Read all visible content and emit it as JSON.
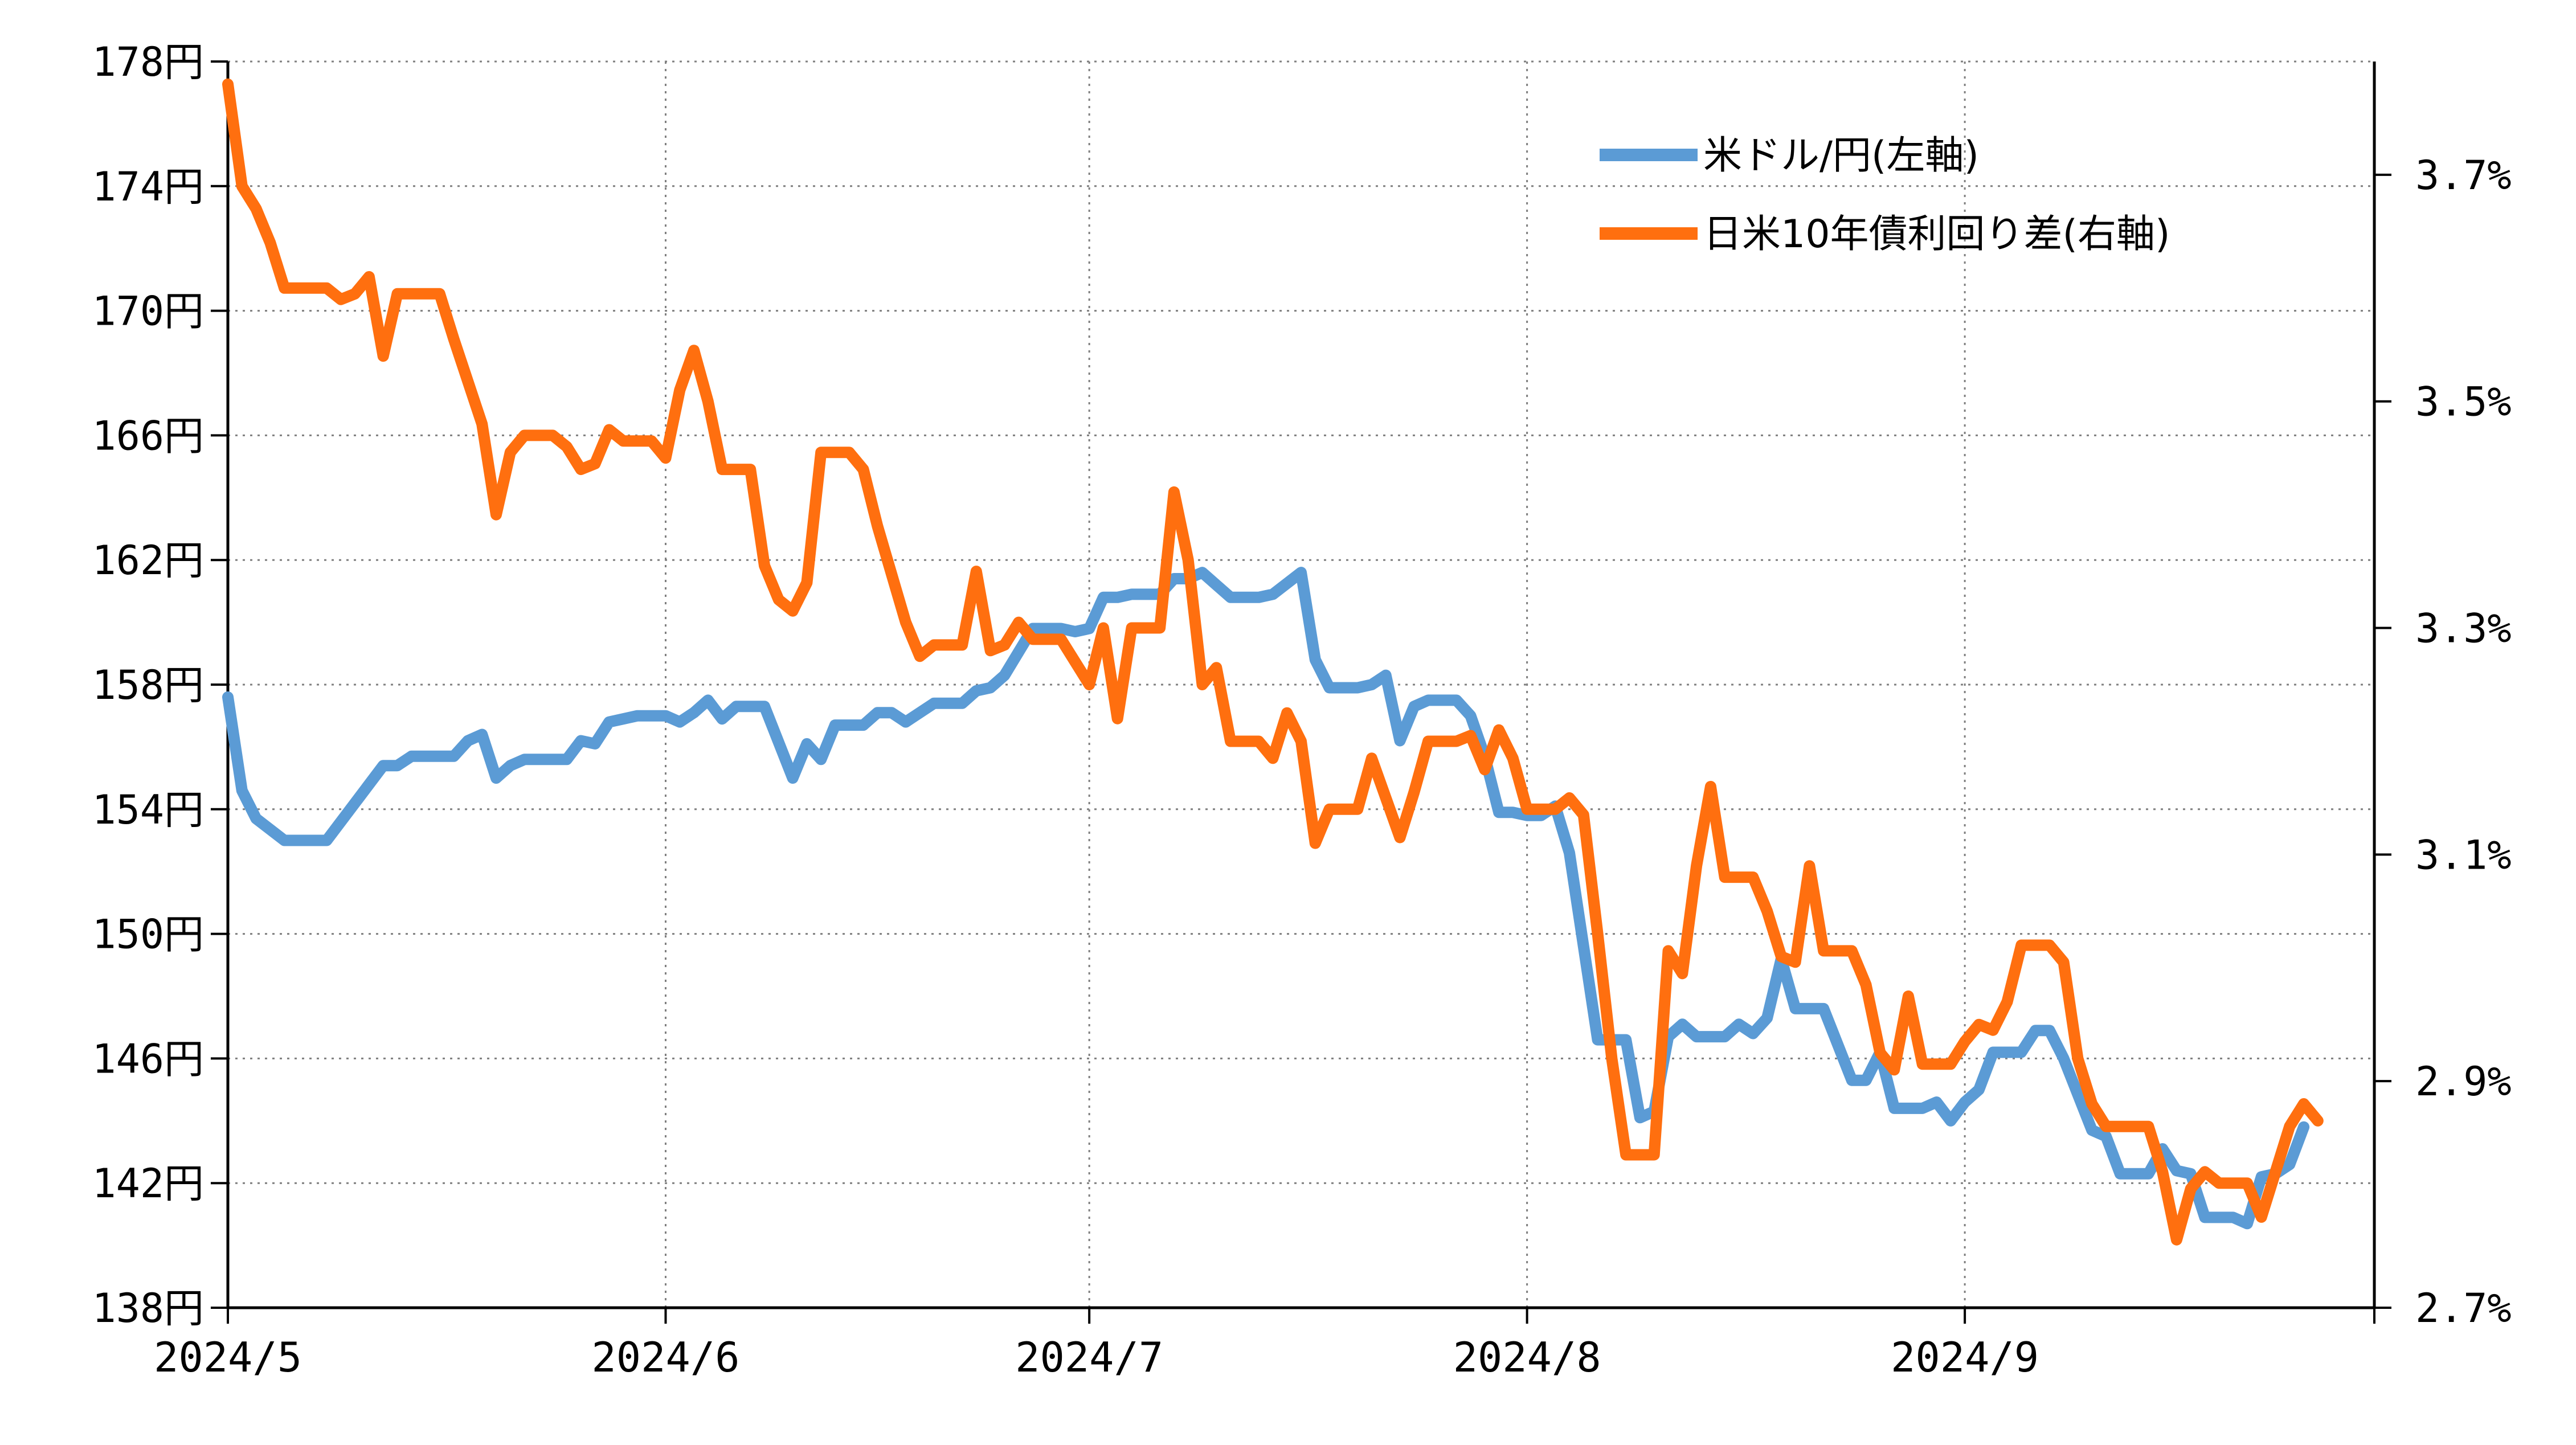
{
  "chart_data": {
    "type": "line",
    "x_unit": "day",
    "xlim": [
      "2024-05-01",
      "2024-09-30"
    ],
    "x_tick_labels": [
      "2024/5",
      "2024/6",
      "2024/7",
      "2024/8",
      "2024/9"
    ],
    "x_tick_dates": [
      "2024-05-01",
      "2024-06-01",
      "2024-07-01",
      "2024-08-01",
      "2024-09-01"
    ],
    "y_left": {
      "ylim": [
        138,
        178
      ],
      "tick_values": [
        138,
        142,
        146,
        150,
        154,
        158,
        162,
        166,
        170,
        174,
        178
      ],
      "tick_labels": [
        "138円",
        "142円",
        "146円",
        "150円",
        "154円",
        "158円",
        "162円",
        "166円",
        "170円",
        "174円",
        "178円"
      ]
    },
    "y_right": {
      "ylim": [
        2.7,
        3.8
      ],
      "tick_values": [
        2.7,
        2.9,
        3.1,
        3.3,
        3.5,
        3.7
      ],
      "tick_labels": [
        "2.7%",
        "2.9%",
        "3.1%",
        "3.3%",
        "3.5%",
        "3.7%"
      ]
    },
    "grid": true,
    "legend_position": "top-right",
    "series": [
      {
        "name": "米ドル/円(左軸)",
        "axis": "left",
        "color": "#5b9bd5",
        "points": [
          [
            "2024-05-01",
            157.6
          ],
          [
            "2024-05-02",
            154.6
          ],
          [
            "2024-05-03",
            153.7
          ],
          [
            "2024-05-05",
            153.0
          ],
          [
            "2024-05-08",
            153.0
          ],
          [
            "2024-05-10",
            154.2
          ],
          [
            "2024-05-12",
            155.4
          ],
          [
            "2024-05-13",
            155.4
          ],
          [
            "2024-05-14",
            155.7
          ],
          [
            "2024-05-16",
            155.7
          ],
          [
            "2024-05-17",
            155.7
          ],
          [
            "2024-05-18",
            156.2
          ],
          [
            "2024-05-19",
            156.4
          ],
          [
            "2024-05-20",
            155.0
          ],
          [
            "2024-05-21",
            155.4
          ],
          [
            "2024-05-22",
            155.6
          ],
          [
            "2024-05-24",
            155.6
          ],
          [
            "2024-05-25",
            155.6
          ],
          [
            "2024-05-26",
            156.2
          ],
          [
            "2024-05-27",
            156.1
          ],
          [
            "2024-05-28",
            156.8
          ],
          [
            "2024-05-29",
            156.9
          ],
          [
            "2024-05-30",
            157.0
          ],
          [
            "2024-06-01",
            157.0
          ],
          [
            "2024-06-02",
            156.8
          ],
          [
            "2024-06-03",
            157.1
          ],
          [
            "2024-06-04",
            157.5
          ],
          [
            "2024-06-05",
            156.9
          ],
          [
            "2024-06-06",
            157.3
          ],
          [
            "2024-06-08",
            157.3
          ],
          [
            "2024-06-10",
            155.0
          ],
          [
            "2024-06-11",
            156.1
          ],
          [
            "2024-06-12",
            155.6
          ],
          [
            "2024-06-13",
            156.7
          ],
          [
            "2024-06-15",
            156.7
          ],
          [
            "2024-06-16",
            157.1
          ],
          [
            "2024-06-17",
            157.1
          ],
          [
            "2024-06-18",
            156.8
          ],
          [
            "2024-06-20",
            157.4
          ],
          [
            "2024-06-22",
            157.4
          ],
          [
            "2024-06-23",
            157.8
          ],
          [
            "2024-06-24",
            157.9
          ],
          [
            "2024-06-25",
            158.3
          ],
          [
            "2024-06-27",
            159.8
          ],
          [
            "2024-06-29",
            159.8
          ],
          [
            "2024-06-30",
            159.7
          ],
          [
            "2024-07-01",
            159.8
          ],
          [
            "2024-07-02",
            160.8
          ],
          [
            "2024-07-03",
            160.8
          ],
          [
            "2024-07-04",
            160.9
          ],
          [
            "2024-07-05",
            160.9
          ],
          [
            "2024-07-06",
            160.9
          ],
          [
            "2024-07-07",
            161.4
          ],
          [
            "2024-07-08",
            161.4
          ],
          [
            "2024-07-09",
            161.6
          ],
          [
            "2024-07-10",
            161.2
          ],
          [
            "2024-07-11",
            160.8
          ],
          [
            "2024-07-13",
            160.8
          ],
          [
            "2024-07-14",
            160.9
          ],
          [
            "2024-07-16",
            161.6
          ],
          [
            "2024-07-17",
            158.8
          ],
          [
            "2024-07-18",
            157.9
          ],
          [
            "2024-07-20",
            157.9
          ],
          [
            "2024-07-21",
            158.0
          ],
          [
            "2024-07-22",
            158.3
          ],
          [
            "2024-07-23",
            156.2
          ],
          [
            "2024-07-24",
            157.3
          ],
          [
            "2024-07-25",
            157.5
          ],
          [
            "2024-07-27",
            157.5
          ],
          [
            "2024-07-28",
            157.0
          ],
          [
            "2024-07-29",
            155.7
          ],
          [
            "2024-07-30",
            153.9
          ],
          [
            "2024-07-31",
            153.9
          ],
          [
            "2024-08-01",
            153.8
          ],
          [
            "2024-08-02",
            153.8
          ],
          [
            "2024-08-03",
            154.1
          ],
          [
            "2024-08-04",
            152.6
          ],
          [
            "2024-08-05",
            149.6
          ],
          [
            "2024-08-06",
            146.6
          ],
          [
            "2024-08-07",
            146.6
          ],
          [
            "2024-08-08",
            146.6
          ],
          [
            "2024-08-09",
            144.1
          ],
          [
            "2024-08-10",
            144.3
          ],
          [
            "2024-08-11",
            146.7
          ],
          [
            "2024-08-12",
            147.1
          ],
          [
            "2024-08-13",
            146.7
          ],
          [
            "2024-08-15",
            146.7
          ],
          [
            "2024-08-16",
            147.1
          ],
          [
            "2024-08-17",
            146.8
          ],
          [
            "2024-08-18",
            147.3
          ],
          [
            "2024-08-19",
            149.2
          ],
          [
            "2024-08-20",
            147.6
          ],
          [
            "2024-08-22",
            147.6
          ],
          [
            "2024-08-24",
            145.3
          ],
          [
            "2024-08-25",
            145.3
          ],
          [
            "2024-08-26",
            146.2
          ],
          [
            "2024-08-27",
            144.4
          ],
          [
            "2024-08-29",
            144.4
          ],
          [
            "2024-08-30",
            144.6
          ],
          [
            "2024-08-31",
            144.0
          ],
          [
            "2024-09-01",
            144.6
          ],
          [
            "2024-09-02",
            145.0
          ],
          [
            "2024-09-03",
            146.2
          ],
          [
            "2024-09-04",
            146.2
          ],
          [
            "2024-09-05",
            146.2
          ],
          [
            "2024-09-06",
            146.9
          ],
          [
            "2024-09-07",
            146.9
          ],
          [
            "2024-09-08",
            146.0
          ],
          [
            "2024-09-10",
            143.7
          ],
          [
            "2024-09-11",
            143.5
          ],
          [
            "2024-09-12",
            142.3
          ],
          [
            "2024-09-14",
            142.3
          ],
          [
            "2024-09-15",
            143.1
          ],
          [
            "2024-09-16",
            142.4
          ],
          [
            "2024-09-17",
            142.3
          ],
          [
            "2024-09-18",
            140.9
          ],
          [
            "2024-09-20",
            140.9
          ],
          [
            "2024-09-21",
            140.7
          ],
          [
            "2024-09-22",
            142.2
          ],
          [
            "2024-09-23",
            142.3
          ],
          [
            "2024-09-24",
            142.6
          ],
          [
            "2024-09-25",
            143.8
          ]
        ]
      },
      {
        "name": "日米10年債利回り差(右軸)",
        "axis": "right",
        "color": "#ff6f0f",
        "points": [
          [
            "2024-05-01",
            3.78
          ],
          [
            "2024-05-02",
            3.69
          ],
          [
            "2024-05-03",
            3.67
          ],
          [
            "2024-05-04",
            3.64
          ],
          [
            "2024-05-05",
            3.6
          ],
          [
            "2024-05-07",
            3.6
          ],
          [
            "2024-05-08",
            3.6
          ],
          [
            "2024-05-09",
            3.59
          ],
          [
            "2024-05-10",
            3.595
          ],
          [
            "2024-05-11",
            3.61
          ],
          [
            "2024-05-12",
            3.54
          ],
          [
            "2024-05-13",
            3.595
          ],
          [
            "2024-05-14",
            3.595
          ],
          [
            "2024-05-16",
            3.595
          ],
          [
            "2024-05-17",
            3.555
          ],
          [
            "2024-05-19",
            3.48
          ],
          [
            "2024-05-20",
            3.4
          ],
          [
            "2024-05-21",
            3.455
          ],
          [
            "2024-05-22",
            3.47
          ],
          [
            "2024-05-23",
            3.47
          ],
          [
            "2024-05-24",
            3.47
          ],
          [
            "2024-05-25",
            3.46
          ],
          [
            "2024-05-26",
            3.44
          ],
          [
            "2024-05-27",
            3.445
          ],
          [
            "2024-05-28",
            3.475
          ],
          [
            "2024-05-29",
            3.465
          ],
          [
            "2024-05-31",
            3.465
          ],
          [
            "2024-06-01",
            3.45
          ],
          [
            "2024-06-02",
            3.51
          ],
          [
            "2024-06-03",
            3.545
          ],
          [
            "2024-06-04",
            3.5
          ],
          [
            "2024-06-05",
            3.44
          ],
          [
            "2024-06-07",
            3.44
          ],
          [
            "2024-06-08",
            3.355
          ],
          [
            "2024-06-09",
            3.325
          ],
          [
            "2024-06-10",
            3.315
          ],
          [
            "2024-06-11",
            3.34
          ],
          [
            "2024-06-12",
            3.455
          ],
          [
            "2024-06-14",
            3.455
          ],
          [
            "2024-06-15",
            3.44
          ],
          [
            "2024-06-16",
            3.39
          ],
          [
            "2024-06-18",
            3.305
          ],
          [
            "2024-06-19",
            3.275
          ],
          [
            "2024-06-20",
            3.285
          ],
          [
            "2024-06-21",
            3.285
          ],
          [
            "2024-06-22",
            3.285
          ],
          [
            "2024-06-23",
            3.35
          ],
          [
            "2024-06-24",
            3.28
          ],
          [
            "2024-06-25",
            3.285
          ],
          [
            "2024-06-26",
            3.305
          ],
          [
            "2024-06-27",
            3.29
          ],
          [
            "2024-06-29",
            3.29
          ],
          [
            "2024-06-30",
            3.27
          ],
          [
            "2024-07-01",
            3.25
          ],
          [
            "2024-07-02",
            3.3
          ],
          [
            "2024-07-03",
            3.22
          ],
          [
            "2024-07-04",
            3.3
          ],
          [
            "2024-07-05",
            3.3
          ],
          [
            "2024-07-06",
            3.3
          ],
          [
            "2024-07-07",
            3.42
          ],
          [
            "2024-07-08",
            3.36
          ],
          [
            "2024-07-09",
            3.25
          ],
          [
            "2024-07-10",
            3.265
          ],
          [
            "2024-07-11",
            3.2
          ],
          [
            "2024-07-13",
            3.2
          ],
          [
            "2024-07-14",
            3.185
          ],
          [
            "2024-07-15",
            3.225
          ],
          [
            "2024-07-16",
            3.2
          ],
          [
            "2024-07-17",
            3.11
          ],
          [
            "2024-07-18",
            3.14
          ],
          [
            "2024-07-20",
            3.14
          ],
          [
            "2024-07-21",
            3.185
          ],
          [
            "2024-07-22",
            3.15
          ],
          [
            "2024-07-23",
            3.115
          ],
          [
            "2024-07-24",
            3.155
          ],
          [
            "2024-07-25",
            3.2
          ],
          [
            "2024-07-27",
            3.2
          ],
          [
            "2024-07-28",
            3.205
          ],
          [
            "2024-07-29",
            3.175
          ],
          [
            "2024-07-30",
            3.21
          ],
          [
            "2024-07-31",
            3.185
          ],
          [
            "2024-08-01",
            3.14
          ],
          [
            "2024-08-02",
            3.14
          ],
          [
            "2024-08-03",
            3.14
          ],
          [
            "2024-08-04",
            3.15
          ],
          [
            "2024-08-05",
            3.135
          ],
          [
            "2024-08-06",
            3.03
          ],
          [
            "2024-08-07",
            2.92
          ],
          [
            "2024-08-08",
            2.835
          ],
          [
            "2024-08-10",
            2.835
          ],
          [
            "2024-08-11",
            3.015
          ],
          [
            "2024-08-12",
            2.995
          ],
          [
            "2024-08-13",
            3.09
          ],
          [
            "2024-08-14",
            3.16
          ],
          [
            "2024-08-15",
            3.08
          ],
          [
            "2024-08-17",
            3.08
          ],
          [
            "2024-08-18",
            3.05
          ],
          [
            "2024-08-19",
            3.01
          ],
          [
            "2024-08-20",
            3.005
          ],
          [
            "2024-08-21",
            3.09
          ],
          [
            "2024-08-22",
            3.015
          ],
          [
            "2024-08-24",
            3.015
          ],
          [
            "2024-08-25",
            2.985
          ],
          [
            "2024-08-26",
            2.925
          ],
          [
            "2024-08-27",
            2.91
          ],
          [
            "2024-08-28",
            2.975
          ],
          [
            "2024-08-29",
            2.915
          ],
          [
            "2024-08-31",
            2.915
          ],
          [
            "2024-09-01",
            2.935
          ],
          [
            "2024-09-02",
            2.95
          ],
          [
            "2024-09-03",
            2.945
          ],
          [
            "2024-09-04",
            2.97
          ],
          [
            "2024-09-05",
            3.02
          ],
          [
            "2024-09-07",
            3.02
          ],
          [
            "2024-09-08",
            3.005
          ],
          [
            "2024-09-09",
            2.92
          ],
          [
            "2024-09-10",
            2.88
          ],
          [
            "2024-09-11",
            2.86
          ],
          [
            "2024-09-14",
            2.86
          ],
          [
            "2024-09-15",
            2.82
          ],
          [
            "2024-09-16",
            2.76
          ],
          [
            "2024-09-17",
            2.805
          ],
          [
            "2024-09-18",
            2.82
          ],
          [
            "2024-09-19",
            2.81
          ],
          [
            "2024-09-21",
            2.81
          ],
          [
            "2024-09-22",
            2.78
          ],
          [
            "2024-09-23",
            2.82
          ],
          [
            "2024-09-24",
            2.86
          ],
          [
            "2024-09-25",
            2.88
          ],
          [
            "2024-09-26",
            2.865
          ]
        ]
      }
    ]
  }
}
